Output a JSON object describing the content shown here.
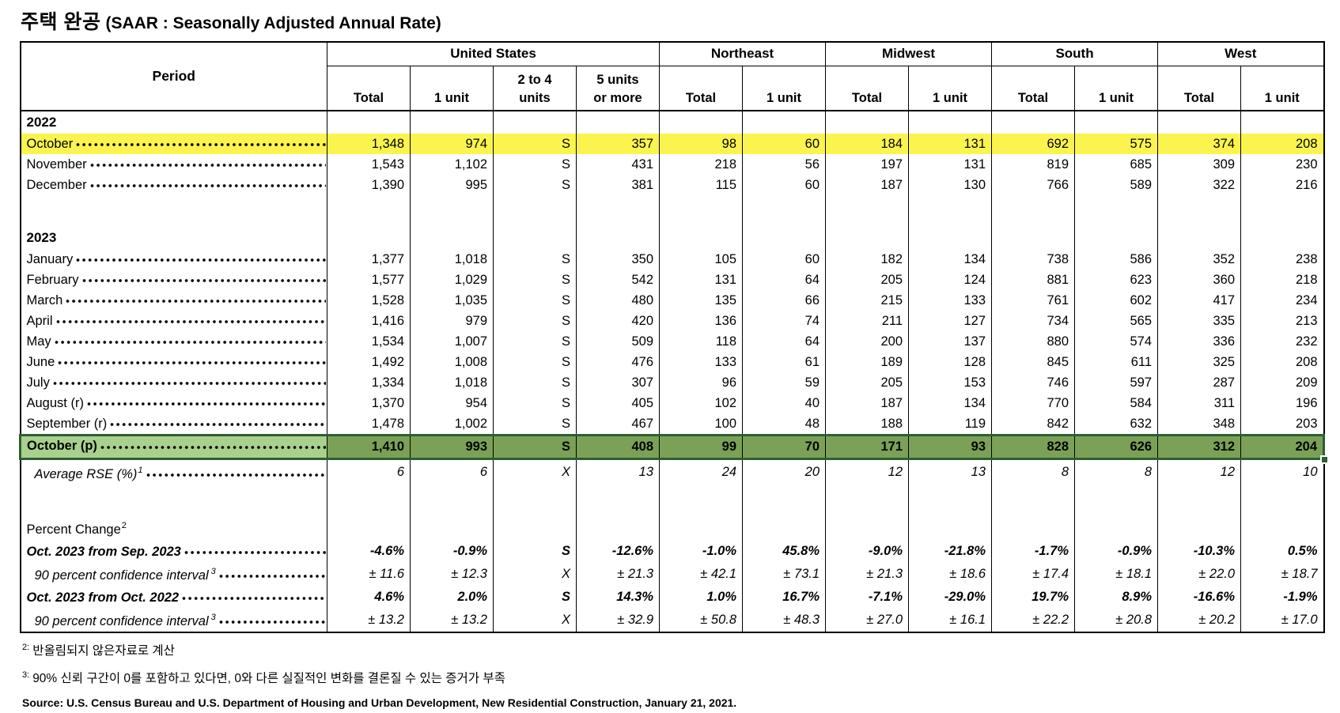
{
  "title": {
    "korean": "주택 완공",
    "english": "(SAAR : Seasonally Adjusted Annual Rate)"
  },
  "colors": {
    "highlight_yellow": "#FBF44E",
    "selected_label_green": "#A9D18E",
    "selected_cell_green": "#7BA156",
    "selection_border_green": "#2F5D33"
  },
  "table": {
    "period_header": "Period",
    "groups": [
      {
        "label": "United States",
        "cols": [
          "Total",
          "1 unit",
          "2 to 4 units",
          "5 units or more"
        ]
      },
      {
        "label": "Northeast",
        "cols": [
          "Total",
          "1 unit"
        ]
      },
      {
        "label": "Midwest",
        "cols": [
          "Total",
          "1 unit"
        ]
      },
      {
        "label": "South",
        "cols": [
          "Total",
          "1 unit"
        ]
      },
      {
        "label": "West",
        "cols": [
          "Total",
          "1 unit"
        ]
      }
    ],
    "rows": [
      {
        "type": "year",
        "label": "2022"
      },
      {
        "type": "data",
        "label": "October",
        "highlight": "yellow",
        "values": [
          "1,348",
          "974",
          "S",
          "357",
          "98",
          "60",
          "184",
          "131",
          "692",
          "575",
          "374",
          "208"
        ]
      },
      {
        "type": "data",
        "label": "November",
        "values": [
          "1,543",
          "1,102",
          "S",
          "431",
          "218",
          "56",
          "197",
          "131",
          "819",
          "685",
          "309",
          "230"
        ]
      },
      {
        "type": "data",
        "label": "December",
        "values": [
          "1,390",
          "995",
          "S",
          "381",
          "115",
          "60",
          "187",
          "130",
          "766",
          "589",
          "322",
          "216"
        ]
      },
      {
        "type": "blank"
      },
      {
        "type": "year",
        "label": "2023"
      },
      {
        "type": "data",
        "label": "January",
        "values": [
          "1,377",
          "1,018",
          "S",
          "350",
          "105",
          "60",
          "182",
          "134",
          "738",
          "586",
          "352",
          "238"
        ]
      },
      {
        "type": "data",
        "label": "February",
        "values": [
          "1,577",
          "1,029",
          "S",
          "542",
          "131",
          "64",
          "205",
          "124",
          "881",
          "623",
          "360",
          "218"
        ]
      },
      {
        "type": "data",
        "label": "March",
        "values": [
          "1,528",
          "1,035",
          "S",
          "480",
          "135",
          "66",
          "215",
          "133",
          "761",
          "602",
          "417",
          "234"
        ]
      },
      {
        "type": "data",
        "label": "April",
        "values": [
          "1,416",
          "979",
          "S",
          "420",
          "136",
          "74",
          "211",
          "127",
          "734",
          "565",
          "335",
          "213"
        ]
      },
      {
        "type": "data",
        "label": "May",
        "values": [
          "1,534",
          "1,007",
          "S",
          "509",
          "118",
          "64",
          "200",
          "137",
          "880",
          "574",
          "336",
          "232"
        ]
      },
      {
        "type": "data",
        "label": "June",
        "values": [
          "1,492",
          "1,008",
          "S",
          "476",
          "133",
          "61",
          "189",
          "128",
          "845",
          "611",
          "325",
          "208"
        ]
      },
      {
        "type": "data",
        "label": "July",
        "values": [
          "1,334",
          "1,018",
          "S",
          "307",
          "96",
          "59",
          "205",
          "153",
          "746",
          "597",
          "287",
          "209"
        ]
      },
      {
        "type": "data",
        "label": "August (r)",
        "values": [
          "1,370",
          "954",
          "S",
          "405",
          "102",
          "40",
          "187",
          "134",
          "770",
          "584",
          "311",
          "196"
        ]
      },
      {
        "type": "data",
        "label": "September (r)",
        "values": [
          "1,478",
          "1,002",
          "S",
          "467",
          "100",
          "48",
          "188",
          "119",
          "842",
          "632",
          "348",
          "203"
        ]
      },
      {
        "type": "data",
        "label": "October (p)",
        "highlight": "green",
        "values": [
          "1,410",
          "993",
          "S",
          "408",
          "99",
          "70",
          "171",
          "93",
          "828",
          "626",
          "312",
          "204"
        ]
      },
      {
        "type": "rse",
        "label": "Average RSE (%)",
        "sup": "1",
        "values": [
          "6",
          "6",
          "X",
          "13",
          "24",
          "20",
          "12",
          "13",
          "8",
          "8",
          "12",
          "10"
        ]
      },
      {
        "type": "blank"
      },
      {
        "type": "section",
        "label": "Percent Change",
        "sup": "2"
      },
      {
        "type": "pct",
        "label": "Oct. 2023 from Sep. 2023",
        "values": [
          "-4.6%",
          "-0.9%",
          "S",
          "-12.6%",
          "-1.0%",
          "45.8%",
          "-9.0%",
          "-21.8%",
          "-1.7%",
          "-0.9%",
          "-10.3%",
          "0.5%"
        ]
      },
      {
        "type": "ci",
        "label": "90 percent confidence interval",
        "sup": "3",
        "values": [
          "± 11.6",
          "± 12.3",
          "X",
          "± 21.3",
          "± 42.1",
          "± 73.1",
          "± 21.3",
          "± 18.6",
          "± 17.4",
          "± 18.1",
          "± 22.0",
          "± 18.7"
        ]
      },
      {
        "type": "pct",
        "label": "Oct. 2023 from Oct. 2022",
        "values": [
          "4.6%",
          "2.0%",
          "S",
          "14.3%",
          "1.0%",
          "16.7%",
          "-7.1%",
          "-29.0%",
          "19.7%",
          "8.9%",
          "-16.6%",
          "-1.9%"
        ]
      },
      {
        "type": "ci",
        "label": "90 percent confidence interval",
        "sup": "3",
        "values": [
          "± 13.2",
          "± 13.2",
          "X",
          "± 32.9",
          "± 50.8",
          "± 48.3",
          "± 27.0",
          "± 16.1",
          "± 22.2",
          "± 20.8",
          "± 20.2",
          "± 17.0"
        ]
      }
    ]
  },
  "footnotes": {
    "items": [
      {
        "marker": "2:",
        "text": "반올림되지 않은자료로 계산"
      },
      {
        "marker": "3:",
        "text": "90% 신뢰 구간이 0를 포함하고 있다면, 0와 다른 실질적인 변화를 결론질 수 있는 증거가 부족"
      }
    ],
    "source": "Source: U.S. Census Bureau and U.S. Department of Housing and Urban Development, New Residential Construction, January 21, 2021."
  }
}
